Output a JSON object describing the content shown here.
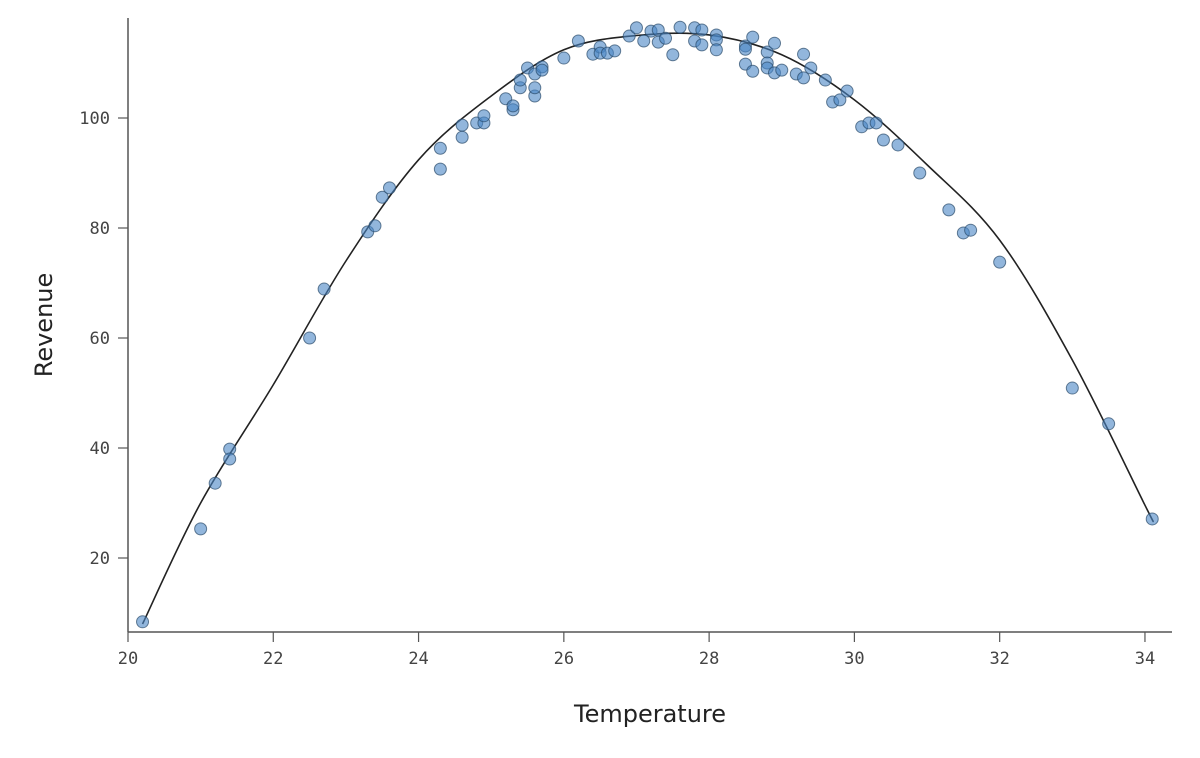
{
  "chart_data": {
    "type": "scatter",
    "title": "",
    "xlabel": "Temperature",
    "ylabel": "Revenue",
    "xlim": [
      20,
      34.3
    ],
    "ylim": [
      6.5,
      118
    ],
    "grid": false,
    "xticks": [
      20,
      22,
      24,
      26,
      28,
      30,
      32,
      34
    ],
    "yticks": [
      20,
      40,
      60,
      80,
      100
    ],
    "colors": {
      "points": "#4a86c5",
      "fit_line": "#222222"
    },
    "points": [
      [
        20.2,
        8.4
      ],
      [
        21.0,
        25.3
      ],
      [
        21.2,
        33.6
      ],
      [
        21.4,
        39.8
      ],
      [
        21.4,
        38.0
      ],
      [
        22.5,
        60.0
      ],
      [
        22.7,
        68.9
      ],
      [
        23.3,
        79.3
      ],
      [
        23.4,
        80.4
      ],
      [
        23.5,
        85.6
      ],
      [
        23.6,
        87.3
      ],
      [
        24.3,
        90.7
      ],
      [
        24.3,
        94.5
      ],
      [
        24.6,
        96.5
      ],
      [
        24.6,
        98.7
      ],
      [
        24.8,
        99.1
      ],
      [
        24.9,
        99.1
      ],
      [
        24.9,
        100.4
      ],
      [
        25.2,
        103.5
      ],
      [
        25.3,
        101.5
      ],
      [
        25.3,
        102.2
      ],
      [
        25.4,
        105.5
      ],
      [
        25.4,
        106.9
      ],
      [
        25.5,
        109.1
      ],
      [
        25.6,
        108.0
      ],
      [
        25.6,
        104.0
      ],
      [
        25.6,
        105.5
      ],
      [
        25.7,
        109.3
      ],
      [
        25.7,
        108.7
      ],
      [
        26.0,
        110.9
      ],
      [
        26.2,
        114.0
      ],
      [
        26.4,
        111.6
      ],
      [
        26.5,
        112.9
      ],
      [
        26.5,
        111.8
      ],
      [
        26.6,
        111.8
      ],
      [
        26.7,
        112.2
      ],
      [
        26.9,
        114.9
      ],
      [
        27.0,
        116.4
      ],
      [
        27.1,
        114.0
      ],
      [
        27.2,
        115.8
      ],
      [
        27.3,
        116.0
      ],
      [
        27.3,
        113.8
      ],
      [
        27.4,
        114.5
      ],
      [
        27.5,
        111.5
      ],
      [
        27.6,
        116.5
      ],
      [
        27.8,
        116.4
      ],
      [
        27.8,
        114.0
      ],
      [
        27.9,
        116.0
      ],
      [
        27.9,
        113.3
      ],
      [
        28.1,
        115.1
      ],
      [
        28.1,
        114.2
      ],
      [
        28.1,
        112.4
      ],
      [
        28.5,
        113.1
      ],
      [
        28.5,
        112.5
      ],
      [
        28.5,
        109.8
      ],
      [
        28.6,
        114.7
      ],
      [
        28.6,
        108.5
      ],
      [
        28.8,
        112.0
      ],
      [
        28.8,
        110.0
      ],
      [
        28.8,
        109.1
      ],
      [
        28.9,
        113.6
      ],
      [
        28.9,
        108.2
      ],
      [
        29.0,
        108.7
      ],
      [
        29.2,
        108.0
      ],
      [
        29.3,
        111.6
      ],
      [
        29.3,
        107.3
      ],
      [
        29.4,
        109.1
      ],
      [
        29.6,
        106.9
      ],
      [
        29.7,
        102.9
      ],
      [
        29.8,
        103.3
      ],
      [
        29.9,
        104.9
      ],
      [
        30.1,
        98.4
      ],
      [
        30.2,
        99.1
      ],
      [
        30.3,
        99.1
      ],
      [
        30.4,
        96.0
      ],
      [
        30.6,
        95.1
      ],
      [
        30.9,
        90.0
      ],
      [
        31.3,
        83.3
      ],
      [
        31.5,
        79.1
      ],
      [
        31.6,
        79.6
      ],
      [
        32.0,
        73.8
      ],
      [
        33.0,
        50.9
      ],
      [
        33.5,
        44.4
      ],
      [
        34.1,
        27.1
      ]
    ],
    "fit_curve": [
      [
        20.2,
        8
      ],
      [
        21,
        30
      ],
      [
        22,
        51.5
      ],
      [
        23,
        74
      ],
      [
        24,
        92.4
      ],
      [
        25,
        104
      ],
      [
        26,
        112.4
      ],
      [
        27,
        115
      ],
      [
        28,
        115.1
      ],
      [
        29,
        111.5
      ],
      [
        30,
        103.3
      ],
      [
        31,
        91.5
      ],
      [
        32,
        77.8
      ],
      [
        33,
        56
      ],
      [
        34,
        29.6
      ],
      [
        34.1,
        27
      ]
    ]
  }
}
